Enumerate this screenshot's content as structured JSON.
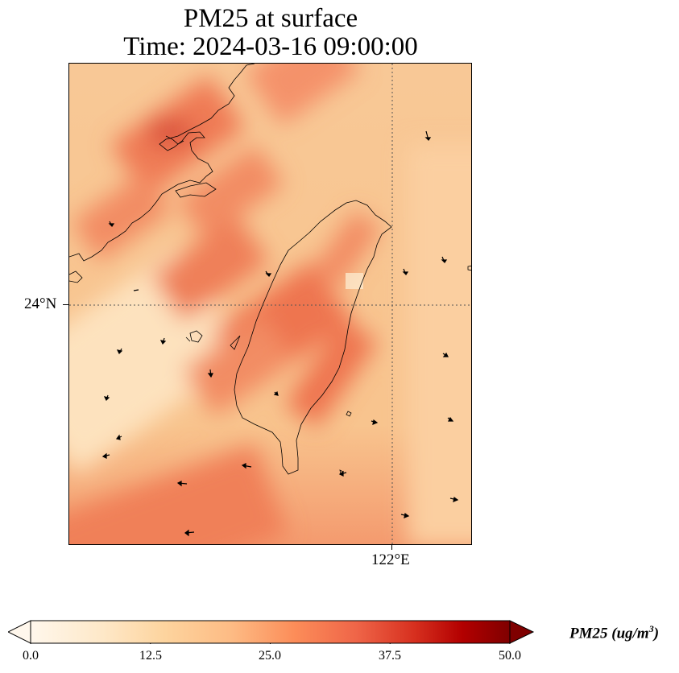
{
  "title": {
    "line1": "PM25 at surface",
    "line2": "Time: 2024-03-16 09:00:00"
  },
  "map": {
    "variable": "PM25",
    "level": "surface",
    "lat_gridline_label": "24°N",
    "lon_gridline_label": "122°E",
    "background_color": "#f7c28c",
    "features": [
      "coastline",
      "gridlines",
      "wind-arrows",
      "pm25-field"
    ]
  },
  "colorbar": {
    "label_main": "PM25 (ug/m",
    "label_sup": "3",
    "label_close": ")",
    "ticks": [
      "0.0",
      "12.5",
      "25.0",
      "37.5",
      "50.0"
    ],
    "min": 0.0,
    "max": 50.0,
    "extend": "both",
    "colormap": "OrRd",
    "colors": [
      "#fff7ec",
      "#fee8c8",
      "#fdd49e",
      "#fdbb84",
      "#fc8d59",
      "#ef6548",
      "#d7301f",
      "#b30000",
      "#7f0000"
    ]
  }
}
